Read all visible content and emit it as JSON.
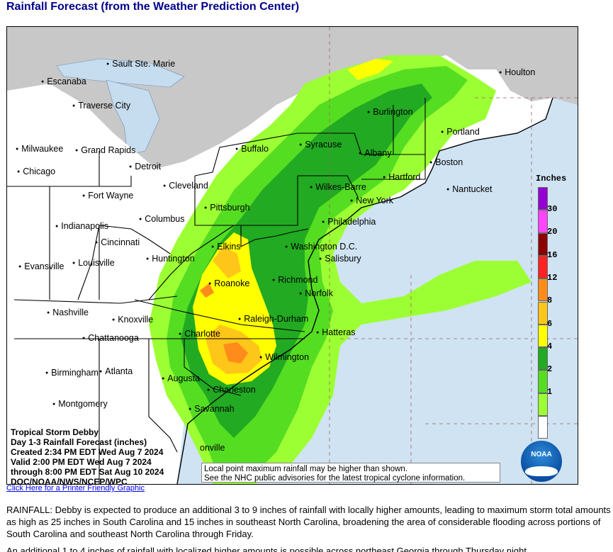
{
  "header": {
    "title": "Rainfall Forecast (from the Weather Prediction Center)"
  },
  "map": {
    "cities": [
      {
        "name": "Sault Ste. Marie",
        "dot": true
      },
      {
        "name": "Escanaba",
        "dot": true
      },
      {
        "name": "Traverse City",
        "dot": true
      },
      {
        "name": "Houlton",
        "dot": true
      },
      {
        "name": "Burlington",
        "dot": true
      },
      {
        "name": "Portland",
        "dot": true
      },
      {
        "name": "Milwaukee",
        "dot": true
      },
      {
        "name": "Grand Rapids",
        "dot": true
      },
      {
        "name": "Buffalo",
        "dot": true
      },
      {
        "name": "Syracuse",
        "dot": true
      },
      {
        "name": "Albany",
        "dot": true
      },
      {
        "name": "Boston",
        "dot": true
      },
      {
        "name": "Chicago",
        "dot": true
      },
      {
        "name": "Detroit",
        "dot": true
      },
      {
        "name": "Hartford",
        "dot": true
      },
      {
        "name": "Cleveland",
        "dot": true
      },
      {
        "name": "Wilkes-Barre",
        "dot": true
      },
      {
        "name": "Nantucket",
        "dot": true
      },
      {
        "name": "Fort Wayne",
        "dot": true
      },
      {
        "name": "New York",
        "dot": true
      },
      {
        "name": "Pittsburgh",
        "dot": true
      },
      {
        "name": "Columbus",
        "dot": true
      },
      {
        "name": "Philadelphia",
        "dot": true
      },
      {
        "name": "Indianapolis",
        "dot": true
      },
      {
        "name": "Cincinnati",
        "dot": true
      },
      {
        "name": "Elkins",
        "dot": true
      },
      {
        "name": "Washington D.C.",
        "dot": true
      },
      {
        "name": "Huntington",
        "dot": true
      },
      {
        "name": "Salisbury",
        "dot": true
      },
      {
        "name": "Evansville",
        "dot": true
      },
      {
        "name": "Louisville",
        "dot": true
      },
      {
        "name": "Roanoke",
        "dot": true
      },
      {
        "name": "Richmond",
        "dot": true
      },
      {
        "name": "Norfolk",
        "dot": true
      },
      {
        "name": "Nashville",
        "dot": true
      },
      {
        "name": "Knoxville",
        "dot": true
      },
      {
        "name": "Raleigh-Durham",
        "dot": true
      },
      {
        "name": "Hatteras",
        "dot": true
      },
      {
        "name": "Chattanooga",
        "dot": true
      },
      {
        "name": "Charlotte",
        "dot": true
      },
      {
        "name": "Wilmington",
        "dot": true
      },
      {
        "name": "Birmingham",
        "dot": true
      },
      {
        "name": "Atlanta",
        "dot": true
      },
      {
        "name": "Augusta",
        "dot": true
      },
      {
        "name": "Charleston",
        "dot": true
      },
      {
        "name": "Montgomery",
        "dot": true
      },
      {
        "name": "Savannah",
        "dot": true
      },
      {
        "name": "onville",
        "dot": false
      }
    ],
    "legend": {
      "title": "Inches",
      "bins": [
        {
          "label": "30",
          "color": "#9400d3"
        },
        {
          "label": "20",
          "color": "#ff44ff"
        },
        {
          "label": "16",
          "color": "#8b0000"
        },
        {
          "label": "12",
          "color": "#ff2222"
        },
        {
          "label": "8",
          "color": "#ff8c1a"
        },
        {
          "label": "6",
          "color": "#ffc61a"
        },
        {
          "label": "4",
          "color": "#ffff00"
        },
        {
          "label": "2",
          "color": "#22aa22"
        },
        {
          "label": "1",
          "color": "#55dd22"
        },
        {
          "label": "",
          "color": "#9cff33"
        },
        {
          "label": "",
          "color": "#ffffff"
        }
      ]
    },
    "info_lines": [
      "Tropical Storm Debby",
      "Day 1-3 Rainfall Forecast (inches)",
      "Created 2:34 PM EDT Wed Aug 7 2024",
      "Valid 2:00 PM EDT Wed Aug 7 2024",
      "through 8:00 PM EDT Sat Aug 10 2024",
      "DOC/NOAA/NWS/NCEP/WPC"
    ],
    "note_lines": [
      "Local point maximum rainfall may be higher than shown.",
      "See the NHC public advisories for the latest tropical cyclone information."
    ],
    "logo_text": "NOAA",
    "colors": {
      "land": "#ffffff",
      "canada": "#c8c8c8",
      "water": "#cfe3f3",
      "lakes": "#c6dcef"
    }
  },
  "links": {
    "printer": "Click Here for a Printer Friendly Graphic"
  },
  "text": {
    "paragraph1": "RAINFALL: Debby is expected to produce an additional 3 to 9 inches of rainfall with locally higher amounts, leading to maximum storm total amounts as high as 25 inches in South Carolina and 15 inches in southeast North Carolina, broadening the area of considerable flooding across portions of South Carolina and southeast North Carolina through Friday.",
    "paragraph2": "An additional 1 to 4 inches of rainfall with localized higher amounts is possible across northeast Georgia through Thursday night."
  }
}
